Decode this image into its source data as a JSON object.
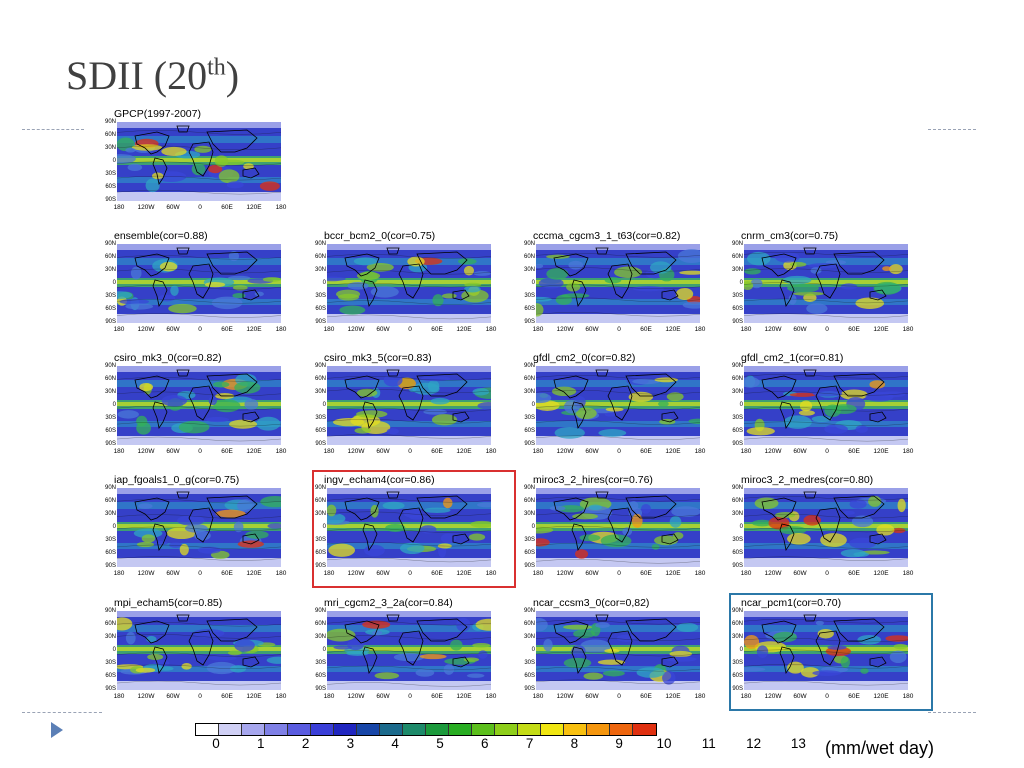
{
  "slide": {
    "title": "SDII (20",
    "title_sup": "th",
    "title_end": ")"
  },
  "axis": {
    "lat_labels": [
      "90N",
      "60N",
      "30N",
      "0",
      "30S",
      "60S",
      "90S"
    ],
    "lon_labels": [
      "180",
      "120W",
      "60W",
      "0",
      "60E",
      "120E",
      "180"
    ]
  },
  "panels": [
    {
      "title": "GPCP(1997-2007)",
      "highlight": null
    },
    {
      "title": "ensemble(cor=0.88)",
      "highlight": null
    },
    {
      "title": "bccr_bcm2_0(cor=0.75)",
      "highlight": null
    },
    {
      "title": "cccma_cgcm3_1_t63(cor=0.82)",
      "highlight": null
    },
    {
      "title": "cnrm_cm3(cor=0.75)",
      "highlight": null
    },
    {
      "title": "csiro_mk3_0(cor=0.82)",
      "highlight": null
    },
    {
      "title": "csiro_mk3_5(cor=0.83)",
      "highlight": null
    },
    {
      "title": "gfdl_cm2_0(cor=0.82)",
      "highlight": null
    },
    {
      "title": "gfdl_cm2_1(cor=0.81)",
      "highlight": null
    },
    {
      "title": "iap_fgoals1_0_g(cor=0.75)",
      "highlight": null
    },
    {
      "title": "ingv_echam4(cor=0.86)",
      "highlight": "#d93030"
    },
    {
      "title": "miroc3_2_hires(cor=0.76)",
      "highlight": null
    },
    {
      "title": "miroc3_2_medres(cor=0.80)",
      "highlight": null
    },
    {
      "title": "mpi_echam5(cor=0.85)",
      "highlight": null
    },
    {
      "title": "mri_cgcm2_3_2a(cor=0.84)",
      "highlight": null
    },
    {
      "title": "ncar_ccsm3_0(cor=0,82)",
      "highlight": null
    },
    {
      "title": "ncar_pcm1(cor=0.70)",
      "highlight": "#2b78a8"
    }
  ],
  "colorbar": {
    "labels": [
      "0",
      "1",
      "2",
      "3",
      "4",
      "5",
      "6",
      "7",
      "8",
      "9",
      "10",
      "11",
      "12",
      "13"
    ],
    "colors": [
      "#ffffff",
      "#d0d0f5",
      "#a7a7ee",
      "#7f80e6",
      "#5a5ce0",
      "#3a3fd8",
      "#2026c0",
      "#1846a8",
      "#1b6a8c",
      "#1d8a6a",
      "#1c9a3c",
      "#28ad22",
      "#5cbf1c",
      "#8ece1a",
      "#c4dc16",
      "#f0e612",
      "#f8c010",
      "#f5960e",
      "#ee660e",
      "#e03010"
    ],
    "units": "(mm/wet day)"
  }
}
